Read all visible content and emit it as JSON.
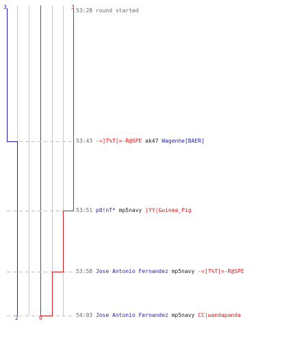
{
  "colors": {
    "blue": "#1f1fb0",
    "red": "#d01818",
    "gray": "#666666",
    "dark": "#202020"
  },
  "teams": {
    "blue": {
      "start_score": "3",
      "end_score": "2"
    },
    "red": {
      "start_score": "3",
      "end_score": "0"
    }
  },
  "events": [
    {
      "time": "53:28",
      "parts": [
        {
          "text": "round started",
          "color": "gray"
        }
      ]
    },
    {
      "time": "53:43",
      "parts": [
        {
          "text": "-=]T%T[=-R@SPE",
          "color": "red"
        },
        {
          "text": " ak47 ",
          "color": "dark"
        },
        {
          "text": "Wagenhe[BAER]",
          "color": "blue"
        }
      ]
    },
    {
      "time": "53:51",
      "parts": [
        {
          "text": "p0!nT*",
          "color": "blue"
        },
        {
          "text": " mp5navy ",
          "color": "dark"
        },
        {
          "text": "|YY|Guinea_Pig",
          "color": "red"
        }
      ]
    },
    {
      "time": "53:58",
      "parts": [
        {
          "text": "Jose Antonio Fernandez",
          "color": "blue"
        },
        {
          "text": " mp5navy ",
          "color": "dark"
        },
        {
          "text": "-=]T%T[=-R@SPE",
          "color": "red"
        }
      ]
    },
    {
      "time": "54:03",
      "parts": [
        {
          "text": "Jose Antonio Fernandez",
          "color": "blue"
        },
        {
          "text": " mp5navy ",
          "color": "dark"
        },
        {
          "text": "CC|wandapanda",
          "color": "red"
        }
      ]
    }
  ]
}
